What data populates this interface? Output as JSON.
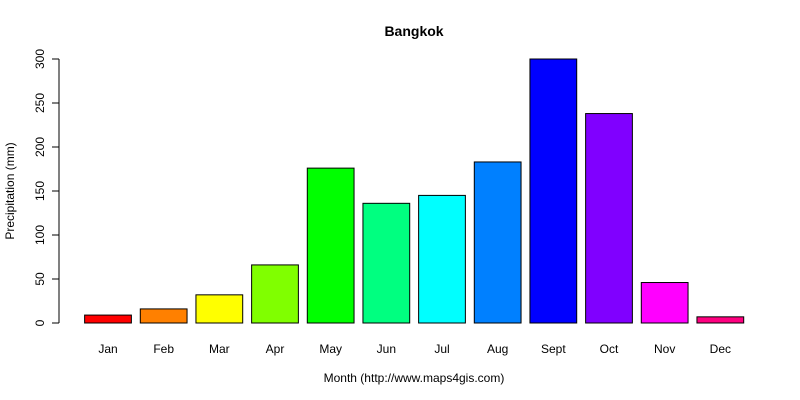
{
  "chart_data": {
    "type": "bar",
    "title": "Bangkok",
    "xlabel": "Month (http://www.maps4gis.com)",
    "ylabel": "Precipitation (mm)",
    "categories": [
      "Jan",
      "Feb",
      "Mar",
      "Apr",
      "May",
      "Jun",
      "Jul",
      "Aug",
      "Sept",
      "Oct",
      "Nov",
      "Dec"
    ],
    "values": [
      9,
      16,
      32,
      66,
      176,
      136,
      145,
      183,
      300,
      238,
      46,
      7
    ],
    "colors": [
      "#FF0000",
      "#FF8000",
      "#FFFF00",
      "#80FF00",
      "#00FF00",
      "#00FF80",
      "#00FFFF",
      "#0080FF",
      "#0000FF",
      "#8000FF",
      "#FF00FF",
      "#FF0080"
    ],
    "yticks": [
      0,
      50,
      100,
      150,
      200,
      250,
      300
    ],
    "ylim": [
      0,
      300
    ],
    "grid": false,
    "legend": "none"
  }
}
